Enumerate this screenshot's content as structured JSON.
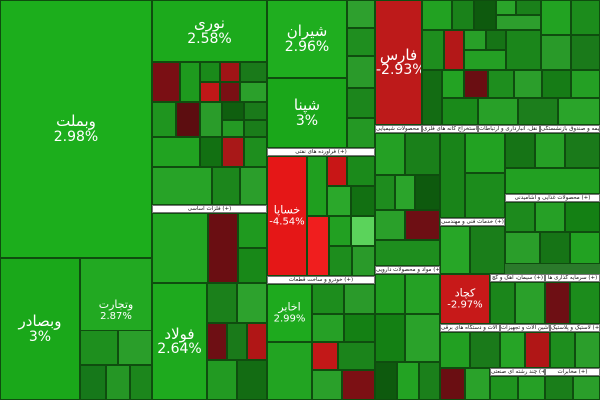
{
  "colors": {
    "positive_strong": "#22b422",
    "positive_mid": "#2e9a2e",
    "positive_dark": "#1b6e1b",
    "positive_deep": "#0e5a0e",
    "negative_strong": "#e81818",
    "negative_mid": "#b31818",
    "negative_dark": "#6e0f14",
    "header_bg": "#ffffff"
  },
  "large_tiles": {
    "vmelat": {
      "symbol": "وبملت",
      "change": "2.98%"
    },
    "vsadr": {
      "symbol": "وبصادر",
      "change": "3%"
    },
    "vtejarat": {
      "symbol": "وتجارت",
      "change": "2.87%"
    },
    "nouri": {
      "symbol": "نوری",
      "change": "2.58%"
    },
    "shiran": {
      "symbol": "شیران",
      "change": "2.96%"
    },
    "shepna": {
      "symbol": "شپنا",
      "change": "3%"
    },
    "fameli": {
      "symbol": "فولاد",
      "change": "2.64%"
    },
    "fars": {
      "symbol": "فارس",
      "change": "-2.93%"
    },
    "khodro_red": {
      "symbol": "خساپا",
      "change": "-4.54%"
    },
    "akhaber": {
      "symbol": "اخابر",
      "change": "2.99%"
    },
    "kachad": {
      "symbol": "کچاد",
      "change": "-2.97%"
    }
  },
  "sector_headers": {
    "banks": "فرآورده های نفتی (+)",
    "metals": "فلزات اساسی (+)",
    "vehicles": "خودرو و ساخت قطعات (+)",
    "chemical": "محصولات شیمیایی (+)",
    "mining": "استخراج کانه های فلزی (+)",
    "food": "محصولات غذایی و آشامیدنی (+)",
    "telecom": "مخابرات (+)",
    "cement": "سیمان، آهک و گچ (+)",
    "investment": "سرمایه گذاری ها (+)",
    "machinery": "ماشین آلات و تجهیزات (+)",
    "pharma": "مواد و محصولات دارویی (+)",
    "tech": "خدمات فنی و مهندسی (+)",
    "transport": "حمل و نقل، انبارداری و ارتباطات (+)",
    "insurance": "بیمه و صندوق بازنشستگی (+)",
    "electric": "ماشین آلات و دستگاه های برقی (+)",
    "rubber": "لاستیک و پلاستیک (+)",
    "multi": "چند رشته ای صنعتی (+)"
  }
}
